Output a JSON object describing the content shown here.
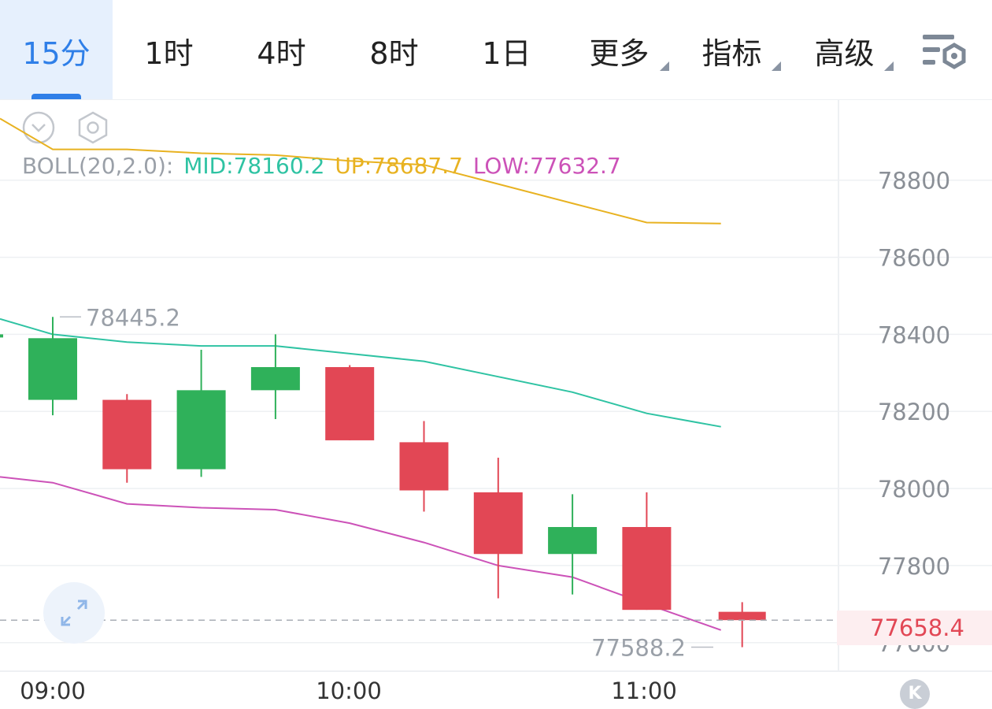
{
  "tabs": [
    {
      "label": "15分",
      "active": true,
      "caret": false
    },
    {
      "label": "1时",
      "active": false,
      "caret": false
    },
    {
      "label": "4时",
      "active": false,
      "caret": false
    },
    {
      "label": "8时",
      "active": false,
      "caret": false
    },
    {
      "label": "1日",
      "active": false,
      "caret": false
    },
    {
      "label": "更多",
      "active": false,
      "caret": true
    },
    {
      "label": "指标",
      "active": false,
      "caret": true
    },
    {
      "label": "高级",
      "active": false,
      "caret": true
    }
  ],
  "icons": {
    "settings": "chart-settings-icon",
    "collapse": "chevron-down-circle-icon",
    "hexagon": "hexagon-settings-icon",
    "expand": "expand-arrows-icon",
    "kline": "k-icon"
  },
  "legend": {
    "prefix": "BOLL(20,2.0):",
    "mid": "MID:78160.2",
    "up": "UP:78687.7",
    "low": "LOW:77632.7"
  },
  "colors": {
    "accent": "#2f7fe8",
    "up_candle": "#2fb15a",
    "down_candle": "#e24755",
    "mid_line": "#2fc3a3",
    "upper_line": "#e8b221",
    "lower_line": "#cc52b8",
    "legend_prefix": "#9aa0a8",
    "axis_text": "#8a8f96",
    "grid": "#eef0f3"
  },
  "current_price": "77658.4",
  "kline_button": "K",
  "chart_data": {
    "type": "candlestick",
    "interval": "15分",
    "ylim": [
      77530,
      79010
    ],
    "y_ticks": [
      78800,
      78600,
      78400,
      78200,
      78000,
      77800,
      77600
    ],
    "x_ticks": [
      "09:00",
      "10:00",
      "11:00"
    ],
    "candles": [
      {
        "open": 78230,
        "close": 78390,
        "high": 78445.2,
        "low": 78190
      },
      {
        "open": 78230,
        "close": 78050,
        "high": 78245,
        "low": 78015
      },
      {
        "open": 78050,
        "close": 78255,
        "high": 78360,
        "low": 78030
      },
      {
        "open": 78255,
        "close": 78315,
        "high": 78400,
        "low": 78180
      },
      {
        "open": 78315,
        "close": 78125,
        "high": 78320,
        "low": 78125
      },
      {
        "open": 78120,
        "close": 77995,
        "high": 78175,
        "low": 77940
      },
      {
        "open": 77990,
        "close": 77830,
        "high": 78080,
        "low": 77715
      },
      {
        "open": 77830,
        "close": 77900,
        "high": 77985,
        "low": 77725
      },
      {
        "open": 77900,
        "close": 77685,
        "high": 77990,
        "low": 77685
      },
      {
        "open": 77680,
        "close": 77658.4,
        "high": 77705,
        "low": 77588.2
      }
    ],
    "boll": {
      "up": [
        78960,
        78880,
        78880,
        78870,
        78865,
        78850,
        78840,
        78790,
        78740,
        78690,
        78687.7
      ],
      "mid": [
        78440,
        78400,
        78380,
        78370,
        78370,
        78350,
        78330,
        78290,
        78250,
        78195,
        78160.2
      ],
      "low": [
        78030,
        78015,
        77960,
        77950,
        77945,
        77910,
        77860,
        77800,
        77770,
        77700,
        77632.7
      ]
    },
    "high_label": "78445.2",
    "low_label": "77588.2",
    "last_price": 77658.4
  }
}
